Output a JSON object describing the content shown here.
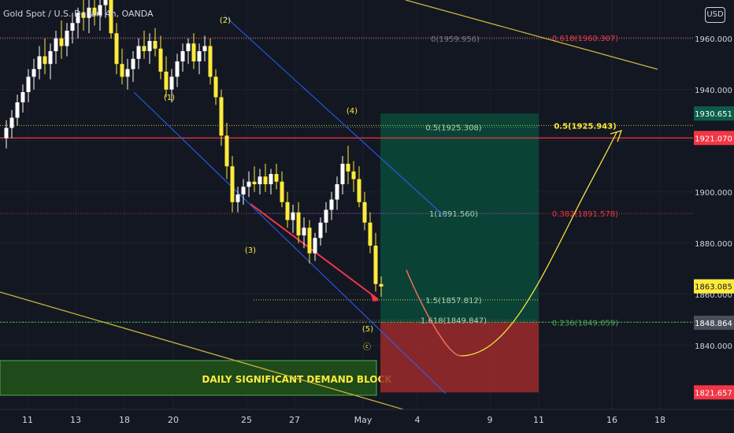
{
  "header": {
    "title": "Gold Spot / U.S. Dollar, 4h, OANDA",
    "currency": "USD"
  },
  "colors": {
    "background": "#131722",
    "up": "#ffffff",
    "down": "#ffeb3b",
    "red_line": "#f23645",
    "yellow": "#f5e342",
    "blue": "#2962ff",
    "green_level": "#4caf50",
    "profit_zone": "#0b4a3a",
    "loss_zone": "#9c2a2a",
    "demand_block": "#1f4a1a"
  },
  "chart_data": {
    "type": "candlestick",
    "title": "Gold Spot / U.S. Dollar, 4h, OANDA",
    "x_ticks": [
      "11",
      "13",
      "18",
      "20",
      "25",
      "27",
      "May",
      "4",
      "9",
      "11",
      "16",
      "18"
    ],
    "y_ticks": [
      1840,
      1860,
      1880,
      1900,
      1920,
      1940,
      1960
    ],
    "y_tick_labels": [
      "1840.000",
      "1860.000",
      "1880.000",
      "1900.000",
      "1920.000",
      "1940.000",
      "1960.000"
    ],
    "ylim": [
      1815,
      1975
    ],
    "price_badges": [
      {
        "label": "1930.651",
        "value": 1930.651,
        "kind": "green"
      },
      {
        "label": "1921.070",
        "value": 1921.07,
        "kind": "red"
      },
      {
        "label": "1863.085",
        "value": 1863.085,
        "kind": "yellow"
      },
      {
        "label": "1848.864",
        "value": 1848.864,
        "kind": "gray"
      },
      {
        "label": "1821.657",
        "value": 1821.657,
        "kind": "red"
      }
    ],
    "fib_retracement_labels": [
      {
        "label": "0(1959.956)",
        "value": 1959.956
      },
      {
        "label": "0.618(1960.307)",
        "value": 1960.307
      },
      {
        "label": "0.5(1925.943)",
        "value": 1925.943
      },
      {
        "label": "0.382(1891.578)",
        "value": 1891.578
      },
      {
        "label": "0.236(1849.059)",
        "value": 1849.059
      }
    ],
    "fib_extension_labels": [
      {
        "label": "0.5(1925.308)",
        "value": 1925.308
      },
      {
        "label": "1(1891.560)",
        "value": 1891.56
      },
      {
        "label": "1.5(1857.812)",
        "value": 1857.812
      },
      {
        "label": "1.618(1849.847)",
        "value": 1849.847
      }
    ],
    "wave_labels": [
      "(1)",
      "(2)",
      "(3)",
      "(4)",
      "(5)",
      "ⓒ"
    ],
    "annotation": "DAILY SIGNIFICANT DEMAND BLOCK",
    "horizontal_level": 1921.07,
    "support_level": 1849.059,
    "position": {
      "entry": 1849.059,
      "target": 1930.651,
      "stop": 1821.657
    },
    "candles": [
      {
        "o": 1921,
        "h": 1928,
        "l": 1917,
        "c": 1925
      },
      {
        "o": 1925,
        "h": 1932,
        "l": 1921,
        "c": 1929
      },
      {
        "o": 1929,
        "h": 1938,
        "l": 1926,
        "c": 1935
      },
      {
        "o": 1935,
        "h": 1942,
        "l": 1931,
        "c": 1939
      },
      {
        "o": 1939,
        "h": 1948,
        "l": 1935,
        "c": 1945
      },
      {
        "o": 1945,
        "h": 1952,
        "l": 1940,
        "c": 1948
      },
      {
        "o": 1948,
        "h": 1957,
        "l": 1944,
        "c": 1953
      },
      {
        "o": 1953,
        "h": 1960,
        "l": 1946,
        "c": 1950
      },
      {
        "o": 1950,
        "h": 1958,
        "l": 1944,
        "c": 1955
      },
      {
        "o": 1955,
        "h": 1963,
        "l": 1950,
        "c": 1960
      },
      {
        "o": 1960,
        "h": 1967,
        "l": 1952,
        "c": 1957
      },
      {
        "o": 1957,
        "h": 1966,
        "l": 1953,
        "c": 1963
      },
      {
        "o": 1963,
        "h": 1970,
        "l": 1958,
        "c": 1966
      },
      {
        "o": 1966,
        "h": 1972,
        "l": 1960,
        "c": 1970
      },
      {
        "o": 1970,
        "h": 1976,
        "l": 1963,
        "c": 1968
      },
      {
        "o": 1968,
        "h": 1976,
        "l": 1962,
        "c": 1972
      },
      {
        "o": 1972,
        "h": 1978,
        "l": 1965,
        "c": 1969
      },
      {
        "o": 1969,
        "h": 1977,
        "l": 1963,
        "c": 1973
      },
      {
        "o": 1973,
        "h": 1979,
        "l": 1968,
        "c": 1976
      },
      {
        "o": 1976,
        "h": 1980,
        "l": 1960,
        "c": 1962
      },
      {
        "o": 1962,
        "h": 1966,
        "l": 1946,
        "c": 1950
      },
      {
        "o": 1950,
        "h": 1956,
        "l": 1942,
        "c": 1945
      },
      {
        "o": 1945,
        "h": 1952,
        "l": 1940,
        "c": 1948
      },
      {
        "o": 1948,
        "h": 1955,
        "l": 1943,
        "c": 1952
      },
      {
        "o": 1952,
        "h": 1960,
        "l": 1948,
        "c": 1957
      },
      {
        "o": 1957,
        "h": 1963,
        "l": 1952,
        "c": 1955
      },
      {
        "o": 1955,
        "h": 1962,
        "l": 1950,
        "c": 1959
      },
      {
        "o": 1959,
        "h": 1964,
        "l": 1953,
        "c": 1956
      },
      {
        "o": 1956,
        "h": 1961,
        "l": 1944,
        "c": 1947
      },
      {
        "o": 1947,
        "h": 1953,
        "l": 1937,
        "c": 1940
      },
      {
        "o": 1940,
        "h": 1948,
        "l": 1935,
        "c": 1945
      },
      {
        "o": 1945,
        "h": 1954,
        "l": 1941,
        "c": 1951
      },
      {
        "o": 1951,
        "h": 1958,
        "l": 1947,
        "c": 1955
      },
      {
        "o": 1955,
        "h": 1960,
        "l": 1950,
        "c": 1958
      },
      {
        "o": 1958,
        "h": 1962,
        "l": 1948,
        "c": 1951
      },
      {
        "o": 1951,
        "h": 1958,
        "l": 1946,
        "c": 1955
      },
      {
        "o": 1955,
        "h": 1961,
        "l": 1951,
        "c": 1957
      },
      {
        "o": 1957,
        "h": 1960,
        "l": 1942,
        "c": 1945
      },
      {
        "o": 1945,
        "h": 1948,
        "l": 1934,
        "c": 1937
      },
      {
        "o": 1937,
        "h": 1940,
        "l": 1918,
        "c": 1922
      },
      {
        "o": 1922,
        "h": 1927,
        "l": 1905,
        "c": 1910
      },
      {
        "o": 1910,
        "h": 1914,
        "l": 1892,
        "c": 1896
      },
      {
        "o": 1896,
        "h": 1902,
        "l": 1892,
        "c": 1899
      },
      {
        "o": 1899,
        "h": 1905,
        "l": 1895,
        "c": 1902
      },
      {
        "o": 1902,
        "h": 1908,
        "l": 1898,
        "c": 1904
      },
      {
        "o": 1904,
        "h": 1910,
        "l": 1900,
        "c": 1903
      },
      {
        "o": 1903,
        "h": 1909,
        "l": 1899,
        "c": 1906
      },
      {
        "o": 1906,
        "h": 1911,
        "l": 1900,
        "c": 1903
      },
      {
        "o": 1903,
        "h": 1909,
        "l": 1899,
        "c": 1907
      },
      {
        "o": 1907,
        "h": 1911,
        "l": 1901,
        "c": 1904
      },
      {
        "o": 1904,
        "h": 1908,
        "l": 1894,
        "c": 1896
      },
      {
        "o": 1896,
        "h": 1900,
        "l": 1886,
        "c": 1889
      },
      {
        "o": 1889,
        "h": 1895,
        "l": 1884,
        "c": 1892
      },
      {
        "o": 1892,
        "h": 1896,
        "l": 1880,
        "c": 1883
      },
      {
        "o": 1883,
        "h": 1890,
        "l": 1878,
        "c": 1886
      },
      {
        "o": 1886,
        "h": 1889,
        "l": 1872,
        "c": 1876
      },
      {
        "o": 1876,
        "h": 1884,
        "l": 1873,
        "c": 1882
      },
      {
        "o": 1882,
        "h": 1890,
        "l": 1879,
        "c": 1888
      },
      {
        "o": 1888,
        "h": 1896,
        "l": 1884,
        "c": 1893
      },
      {
        "o": 1893,
        "h": 1900,
        "l": 1889,
        "c": 1897
      },
      {
        "o": 1897,
        "h": 1906,
        "l": 1893,
        "c": 1903
      },
      {
        "o": 1903,
        "h": 1914,
        "l": 1899,
        "c": 1911
      },
      {
        "o": 1911,
        "h": 1918,
        "l": 1903,
        "c": 1908
      },
      {
        "o": 1908,
        "h": 1912,
        "l": 1900,
        "c": 1905
      },
      {
        "o": 1905,
        "h": 1910,
        "l": 1894,
        "c": 1896
      },
      {
        "o": 1896,
        "h": 1900,
        "l": 1885,
        "c": 1888
      },
      {
        "o": 1888,
        "h": 1892,
        "l": 1876,
        "c": 1879
      },
      {
        "o": 1879,
        "h": 1884,
        "l": 1861,
        "c": 1864
      },
      {
        "o": 1864,
        "h": 1867,
        "l": 1859,
        "c": 1863
      }
    ]
  }
}
